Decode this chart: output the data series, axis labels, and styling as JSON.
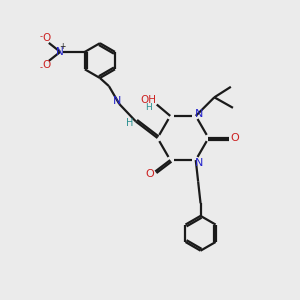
{
  "bg_color": "#ebebeb",
  "bond_color": "#1a1a1a",
  "nitrogen_color": "#2222cc",
  "oxygen_color": "#cc2222",
  "carbon_color": "#2a9090",
  "figsize": [
    3.0,
    3.0
  ],
  "dpi": 100,
  "xlim": [
    0,
    10
  ],
  "ylim": [
    0,
    10
  ]
}
